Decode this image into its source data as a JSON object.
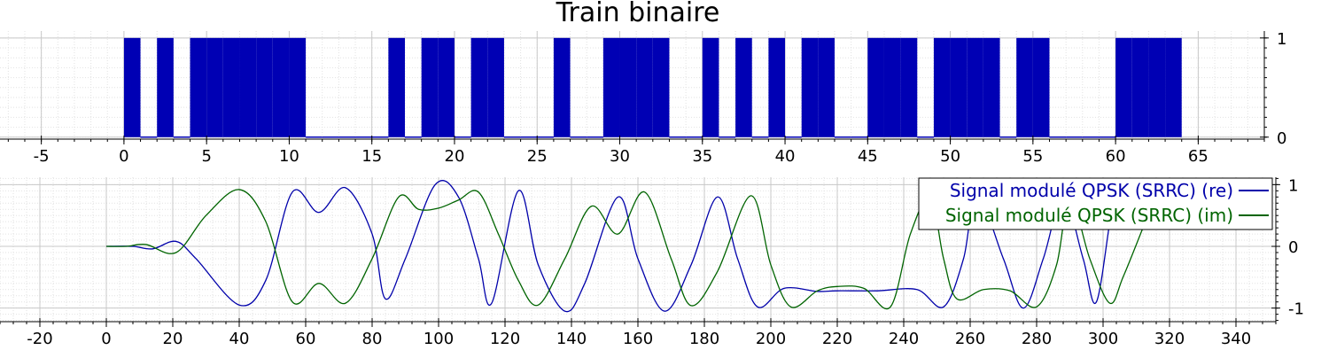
{
  "colors": {
    "bits_fill": "#0000b4",
    "series_re": "#0000aa",
    "series_im": "#006400",
    "grid_major": "#c8c8c8",
    "grid_minor": "#e2e2e2",
    "axis": "#000000"
  },
  "chart_data": [
    {
      "type": "bar",
      "title": "Train binaire",
      "xlabel": "",
      "ylabel": "",
      "xlim": [
        -7.5,
        69
      ],
      "ylim": [
        -0.02,
        1.07
      ],
      "x_ticks": [
        "-5",
        "0",
        "5",
        "10",
        "15",
        "20",
        "25",
        "30",
        "35",
        "40",
        "45",
        "50",
        "55",
        "60",
        "65"
      ],
      "y_ticks": [
        "0",
        "1"
      ],
      "y_axis_side": "right",
      "grid": true,
      "bits": [
        1,
        0,
        1,
        0,
        1,
        1,
        1,
        1,
        1,
        1,
        1,
        0,
        0,
        0,
        0,
        0,
        1,
        0,
        1,
        1,
        0,
        1,
        1,
        0,
        0,
        0,
        1,
        0,
        0,
        1,
        1,
        1,
        1,
        0,
        0,
        1,
        0,
        1,
        0,
        1,
        0,
        1,
        1,
        0,
        0,
        1,
        1,
        1,
        0,
        1,
        1,
        1,
        1,
        0,
        1,
        1,
        0,
        0,
        0,
        0,
        1,
        1,
        1,
        1
      ]
    },
    {
      "type": "line",
      "title": "",
      "xlabel": "",
      "ylabel": "",
      "xlim": [
        -32,
        352
      ],
      "ylim": [
        -1.22,
        1.12
      ],
      "x_ticks": [
        "-20",
        "0",
        "20",
        "40",
        "60",
        "80",
        "100",
        "120",
        "140",
        "160",
        "180",
        "200",
        "220",
        "240",
        "260",
        "280",
        "300",
        "320",
        "340"
      ],
      "y_ticks": [
        "-1",
        "0",
        "1"
      ],
      "y_axis_side": "right",
      "grid": true,
      "legend_position": "top-right",
      "series": [
        {
          "name": "Signal modulé QPSK (SRRC) (re)",
          "points": [
            [
              0,
              0
            ],
            [
              8,
              0
            ],
            [
              14,
              -0.04
            ],
            [
              21,
              0.08
            ],
            [
              27,
              -0.2
            ],
            [
              40,
              -0.95
            ],
            [
              48,
              -0.55
            ],
            [
              56,
              0.88
            ],
            [
              64,
              0.55
            ],
            [
              72,
              0.95
            ],
            [
              80,
              0.2
            ],
            [
              84,
              -0.85
            ],
            [
              90,
              -0.2
            ],
            [
              99,
              1.0
            ],
            [
              106,
              0.8
            ],
            [
              112,
              -0.2
            ],
            [
              116,
              -0.92
            ],
            [
              124,
              0.9
            ],
            [
              130,
              -0.3
            ],
            [
              138,
              -1.05
            ],
            [
              144,
              -0.6
            ],
            [
              154,
              0.8
            ],
            [
              160,
              -0.2
            ],
            [
              168,
              -1.05
            ],
            [
              176,
              -0.3
            ],
            [
              184,
              0.8
            ],
            [
              190,
              -0.2
            ],
            [
              196,
              -0.98
            ],
            [
              204,
              -0.68
            ],
            [
              214,
              -0.73
            ],
            [
              220,
              -0.72
            ],
            [
              232,
              -0.72
            ],
            [
              244,
              -0.7
            ],
            [
              252,
              -0.98
            ],
            [
              258,
              -0.2
            ],
            [
              262,
              0.85
            ],
            [
              270,
              -0.2
            ],
            [
              276,
              -1.0
            ],
            [
              282,
              -0.2
            ],
            [
              288,
              0.8
            ],
            [
              294,
              -0.2
            ],
            [
              298,
              -0.9
            ],
            [
              303,
              0.7
            ],
            [
              306,
              0.9
            ]
          ]
        },
        {
          "name": "Signal modulé QPSK (SRRC) (im)",
          "points": [
            [
              0,
              0
            ],
            [
              6,
              0
            ],
            [
              12,
              0.03
            ],
            [
              21,
              -0.1
            ],
            [
              30,
              0.5
            ],
            [
              40,
              0.92
            ],
            [
              48,
              0.4
            ],
            [
              56,
              -0.9
            ],
            [
              64,
              -0.6
            ],
            [
              72,
              -0.92
            ],
            [
              80,
              -0.2
            ],
            [
              88,
              0.8
            ],
            [
              94,
              0.6
            ],
            [
              100,
              0.62
            ],
            [
              106,
              0.75
            ],
            [
              112,
              0.88
            ],
            [
              118,
              0.2
            ],
            [
              124,
              -0.55
            ],
            [
              130,
              -0.95
            ],
            [
              138,
              -0.2
            ],
            [
              146,
              0.65
            ],
            [
              154,
              0.2
            ],
            [
              162,
              0.88
            ],
            [
              170,
              -0.2
            ],
            [
              176,
              -0.96
            ],
            [
              184,
              -0.4
            ],
            [
              194,
              0.82
            ],
            [
              200,
              -0.3
            ],
            [
              206,
              -0.98
            ],
            [
              214,
              -0.72
            ],
            [
              220,
              -0.65
            ],
            [
              228,
              -0.68
            ],
            [
              236,
              -0.98
            ],
            [
              242,
              0.2
            ],
            [
              248,
              0.8
            ],
            [
              252,
              -0.2
            ],
            [
              256,
              -0.85
            ],
            [
              264,
              -0.7
            ],
            [
              272,
              -0.72
            ],
            [
              280,
              -0.98
            ],
            [
              286,
              -0.3
            ],
            [
              290,
              0.8
            ],
            [
              296,
              -0.2
            ],
            [
              302,
              -0.92
            ],
            [
              306,
              -0.5
            ],
            [
              312,
              0.3
            ]
          ]
        }
      ]
    }
  ]
}
